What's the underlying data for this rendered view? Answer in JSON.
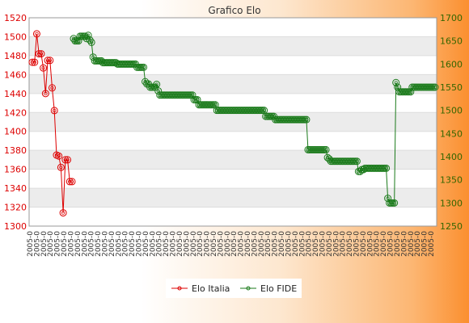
{
  "chart_data": {
    "type": "line",
    "title": "Grafico Elo",
    "y_left": {
      "min": 1300,
      "max": 1520,
      "step": 20
    },
    "y_right": {
      "min": 1250,
      "max": 1700,
      "step": 50
    },
    "x_tick_label": "2005-0",
    "x_tick_count": 60,
    "grid": true,
    "legend_position": "bottom",
    "colors": {
      "italia": "#dd0000",
      "fide": "#1a7a1a",
      "band": "#ececec"
    },
    "series": [
      {
        "name": "Elo Italia",
        "axis": "left",
        "values": [
          1473,
          1473,
          1503,
          1482,
          1482,
          1467,
          1440,
          1475,
          1475,
          1446,
          1422,
          1375,
          1374,
          1362,
          1314,
          1370,
          1370,
          1347,
          1347
        ]
      },
      {
        "name": "Elo FIDE",
        "axis": "right",
        "values": [
          1655,
          1650,
          1650,
          1650,
          1660,
          1660,
          1660,
          1660,
          1655,
          1662,
          1652,
          1647,
          1615,
          1607,
          1607,
          1607,
          1607,
          1607,
          1603,
          1603,
          1603,
          1603,
          1603,
          1603,
          1603,
          1603,
          1603,
          1600,
          1600,
          1600,
          1600,
          1600,
          1600,
          1600,
          1600,
          1600,
          1600,
          1600,
          1600,
          1593,
          1593,
          1593,
          1593,
          1593,
          1562,
          1557,
          1557,
          1550,
          1550,
          1550,
          1550,
          1556,
          1542,
          1533,
          1533,
          1533,
          1533,
          1533,
          1533,
          1533,
          1533,
          1533,
          1533,
          1533,
          1533,
          1533,
          1533,
          1533,
          1533,
          1533,
          1533,
          1533,
          1533,
          1533,
          1523,
          1523,
          1523,
          1512,
          1512,
          1512,
          1512,
          1512,
          1512,
          1512,
          1512,
          1512,
          1512,
          1512,
          1500,
          1500,
          1500,
          1500,
          1500,
          1500,
          1500,
          1500,
          1500,
          1500,
          1500,
          1500,
          1500,
          1500,
          1500,
          1500,
          1500,
          1500,
          1500,
          1500,
          1500,
          1500,
          1500,
          1500,
          1500,
          1500,
          1500,
          1500,
          1500,
          1500,
          1487,
          1487,
          1487,
          1487,
          1487,
          1487,
          1480,
          1480,
          1480,
          1480,
          1480,
          1480,
          1480,
          1480,
          1480,
          1480,
          1480,
          1480,
          1480,
          1480,
          1480,
          1480,
          1480,
          1480,
          1480,
          1480,
          1415,
          1415,
          1415,
          1415,
          1415,
          1415,
          1415,
          1415,
          1415,
          1415,
          1415,
          1415,
          1398,
          1395,
          1390,
          1390,
          1390,
          1390,
          1390,
          1390,
          1390,
          1390,
          1390,
          1390,
          1390,
          1390,
          1390,
          1390,
          1390,
          1390,
          1390,
          1368,
          1368,
          1372,
          1372,
          1375,
          1375,
          1375,
          1375,
          1375,
          1375,
          1375,
          1375,
          1375,
          1375,
          1375,
          1375,
          1375,
          1375,
          1310,
          1300,
          1300,
          1300,
          1300,
          1560,
          1550,
          1540,
          1540,
          1540,
          1540,
          1540,
          1540,
          1540,
          1540,
          1550,
          1550,
          1550,
          1550,
          1550,
          1550,
          1550,
          1550,
          1550,
          1550,
          1550,
          1550,
          1550,
          1550,
          1550
        ]
      }
    ]
  }
}
